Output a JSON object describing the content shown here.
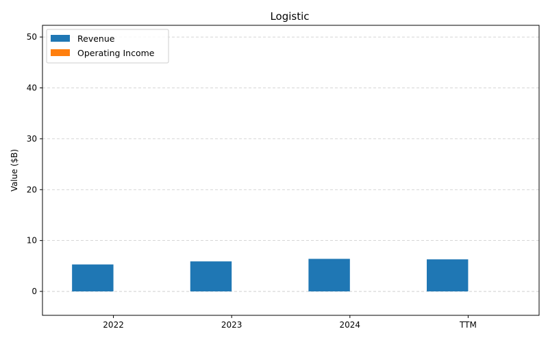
{
  "chart_data": {
    "type": "bar",
    "title": "Logistic",
    "xlabel": "",
    "ylabel": "Value ($B)",
    "categories": [
      "2022",
      "2023",
      "2024",
      "TTM"
    ],
    "series": [
      {
        "name": "Revenue",
        "values": [
          5.3,
          5.9,
          6.4,
          6.3
        ],
        "color": "#1f77b4"
      },
      {
        "name": "Operating Income",
        "values": [
          0,
          0,
          0,
          0
        ],
        "color": "#ff7f0e"
      }
    ],
    "ylim": [
      -4.7,
      52.3
    ],
    "yticks": [
      0,
      10,
      20,
      30,
      40,
      50
    ],
    "grid": true,
    "legend_position": "top-left"
  }
}
